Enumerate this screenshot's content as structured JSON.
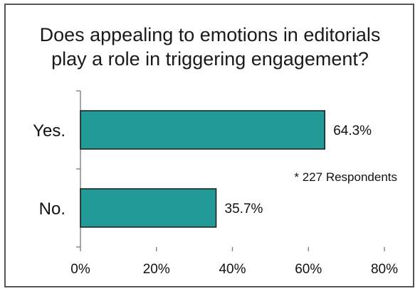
{
  "chart_data": {
    "type": "bar",
    "orientation": "horizontal",
    "title_lines": [
      "Does appealing to emotions in editorials",
      "play a role in triggering engagement?"
    ],
    "categories": [
      "Yes.",
      "No."
    ],
    "values": [
      64.3,
      35.7
    ],
    "value_labels": [
      "64.3%",
      "35.7%"
    ],
    "xlim": [
      0,
      80
    ],
    "xticks": [
      0,
      20,
      40,
      60,
      80
    ],
    "xtick_labels": [
      "0%",
      "20%",
      "40%",
      "60%",
      "80%"
    ],
    "annotation": "* 227 Respondents",
    "bar_color": "#229b98",
    "bar_edge_color": "#1a1a1a",
    "grid": false
  }
}
